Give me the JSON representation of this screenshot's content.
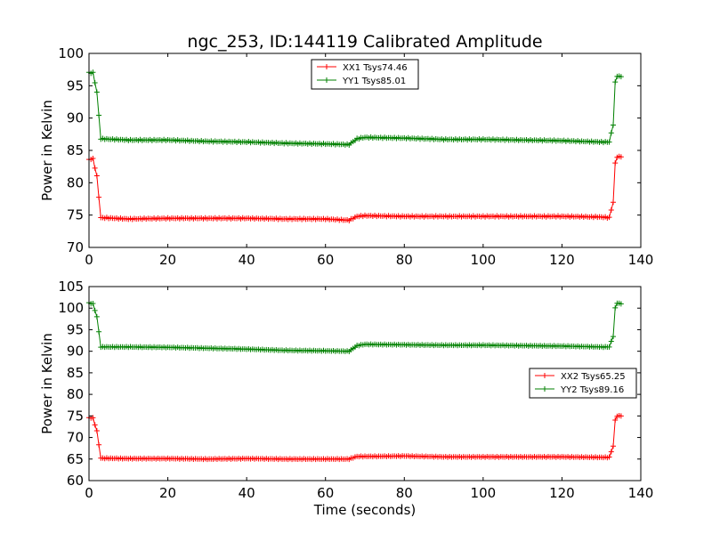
{
  "figure": {
    "title": "ngc_253, ID:144119 Calibrated Amplitude"
  },
  "chart_data": [
    {
      "type": "line",
      "name": "upper-panel",
      "title": "ngc_253, ID:144119 Calibrated Amplitude",
      "xlabel": "",
      "ylabel": "Power in Kelvin",
      "xlim": [
        0,
        140
      ],
      "ylim": [
        70,
        100
      ],
      "xticks": [
        0,
        20,
        40,
        60,
        80,
        100,
        120,
        140
      ],
      "yticks": [
        70,
        75,
        80,
        85,
        90,
        95,
        100
      ],
      "grid": false,
      "legend_position": "top-center",
      "series": [
        {
          "name": "XX1 Tsys74.46",
          "color": "#ff0000",
          "marker": "+",
          "points": [
            [
              0,
              83.6
            ],
            [
              1,
              83.7
            ],
            [
              2,
              81.0
            ],
            [
              3,
              74.6
            ],
            [
              10,
              74.4
            ],
            [
              20,
              74.5
            ],
            [
              30,
              74.5
            ],
            [
              40,
              74.5
            ],
            [
              50,
              74.4
            ],
            [
              60,
              74.4
            ],
            [
              66,
              74.2
            ],
            [
              68,
              74.8
            ],
            [
              70,
              74.9
            ],
            [
              80,
              74.8
            ],
            [
              90,
              74.8
            ],
            [
              100,
              74.8
            ],
            [
              110,
              74.8
            ],
            [
              120,
              74.8
            ],
            [
              130,
              74.7
            ],
            [
              132,
              74.6
            ],
            [
              133,
              77.0
            ],
            [
              133.5,
              83.0
            ],
            [
              134,
              84.0
            ],
            [
              135,
              84.0
            ]
          ]
        },
        {
          "name": "YY1 Tsys85.01",
          "color": "#008000",
          "marker": "+",
          "points": [
            [
              0,
              97.0
            ],
            [
              1,
              97.0
            ],
            [
              2,
              94.0
            ],
            [
              3,
              86.8
            ],
            [
              10,
              86.6
            ],
            [
              20,
              86.6
            ],
            [
              30,
              86.4
            ],
            [
              40,
              86.3
            ],
            [
              50,
              86.1
            ],
            [
              60,
              86.0
            ],
            [
              66,
              85.9
            ],
            [
              68,
              86.8
            ],
            [
              70,
              87.0
            ],
            [
              80,
              86.9
            ],
            [
              90,
              86.7
            ],
            [
              100,
              86.7
            ],
            [
              110,
              86.6
            ],
            [
              120,
              86.5
            ],
            [
              130,
              86.3
            ],
            [
              132,
              86.3
            ],
            [
              133,
              89.0
            ],
            [
              133.5,
              95.5
            ],
            [
              134,
              96.5
            ],
            [
              135,
              96.4
            ]
          ]
        }
      ]
    },
    {
      "type": "line",
      "name": "lower-panel",
      "title": "",
      "xlabel": "Time (seconds)",
      "ylabel": "Power in Kelvin",
      "xlim": [
        0,
        140
      ],
      "ylim": [
        60,
        105
      ],
      "xticks": [
        0,
        20,
        40,
        60,
        80,
        100,
        120,
        140
      ],
      "yticks": [
        60,
        65,
        70,
        75,
        80,
        85,
        90,
        95,
        100,
        105
      ],
      "grid": false,
      "legend_position": "center-right",
      "series": [
        {
          "name": "XX2 Tsys65.25",
          "color": "#ff0000",
          "marker": "+",
          "points": [
            [
              0,
              74.6
            ],
            [
              1,
              74.5
            ],
            [
              2,
              71.5
            ],
            [
              3,
              65.2
            ],
            [
              10,
              65.1
            ],
            [
              20,
              65.1
            ],
            [
              30,
              65.0
            ],
            [
              40,
              65.1
            ],
            [
              50,
              65.0
            ],
            [
              60,
              65.0
            ],
            [
              66,
              65.0
            ],
            [
              68,
              65.6
            ],
            [
              70,
              65.6
            ],
            [
              80,
              65.7
            ],
            [
              90,
              65.5
            ],
            [
              100,
              65.5
            ],
            [
              110,
              65.5
            ],
            [
              120,
              65.5
            ],
            [
              130,
              65.4
            ],
            [
              132,
              65.4
            ],
            [
              133,
              68.0
            ],
            [
              133.5,
              74.0
            ],
            [
              134,
              75.0
            ],
            [
              135,
              75.0
            ]
          ]
        },
        {
          "name": "YY2 Tsys89.16",
          "color": "#008000",
          "marker": "+",
          "points": [
            [
              0,
              101.2
            ],
            [
              1,
              101.0
            ],
            [
              2,
              98.0
            ],
            [
              3,
              91.0
            ],
            [
              10,
              91.0
            ],
            [
              20,
              90.9
            ],
            [
              30,
              90.7
            ],
            [
              40,
              90.5
            ],
            [
              50,
              90.2
            ],
            [
              60,
              90.1
            ],
            [
              66,
              90.0
            ],
            [
              68,
              91.3
            ],
            [
              70,
              91.6
            ],
            [
              80,
              91.5
            ],
            [
              90,
              91.4
            ],
            [
              100,
              91.4
            ],
            [
              110,
              91.3
            ],
            [
              120,
              91.2
            ],
            [
              130,
              91.0
            ],
            [
              132,
              91.0
            ],
            [
              133,
              93.5
            ],
            [
              133.5,
              100.0
            ],
            [
              134,
              101.2
            ],
            [
              135,
              101.0
            ]
          ]
        }
      ]
    }
  ]
}
